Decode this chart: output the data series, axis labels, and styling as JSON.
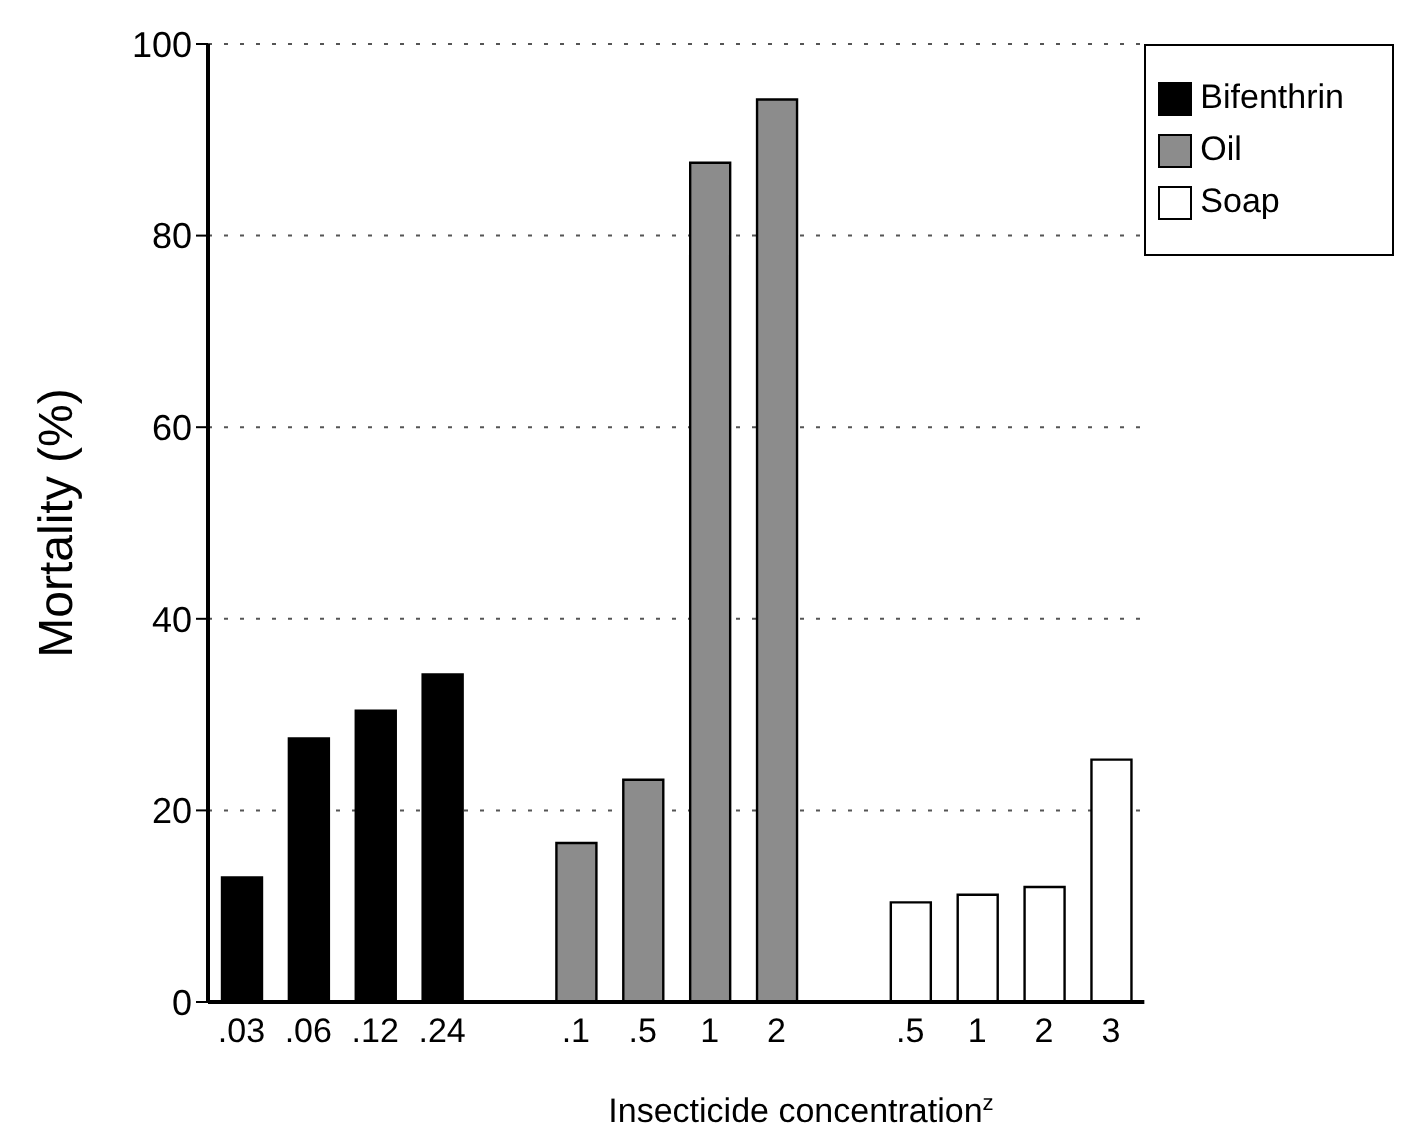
{
  "chart_data": {
    "type": "bar",
    "xlabel": "Insecticide concentration$^{z}$",
    "ylabel": "Mortality (%)",
    "categories": [
      ".03",
      ".06",
      ".12",
      ".24",
      null,
      ".1",
      ".5",
      "1",
      "2",
      null,
      ".5",
      "1",
      "2",
      "3"
    ],
    "series": [
      {
        "name": "Bifenthrin",
        "color": "#000000",
        "values": [
          13,
          27.5,
          30.4,
          34.2,
          null,
          null,
          null,
          null,
          null,
          null,
          null,
          null,
          null,
          null
        ]
      },
      {
        "name": "Oil",
        "color": "#8c8c8c",
        "values": [
          null,
          null,
          null,
          null,
          null,
          16.6,
          23.2,
          87.6,
          94.2,
          null,
          null,
          null,
          null,
          null
        ]
      },
      {
        "name": "Soap",
        "color": "#ffffff",
        "values": [
          null,
          null,
          null,
          null,
          null,
          null,
          null,
          null,
          null,
          null,
          10.4,
          11.2,
          12,
          25.3
        ]
      }
    ],
    "ylim": [
      0,
      100
    ],
    "yticks": [
      0,
      20,
      40,
      60,
      80,
      100
    ],
    "grid": "y",
    "legend": "top right"
  }
}
